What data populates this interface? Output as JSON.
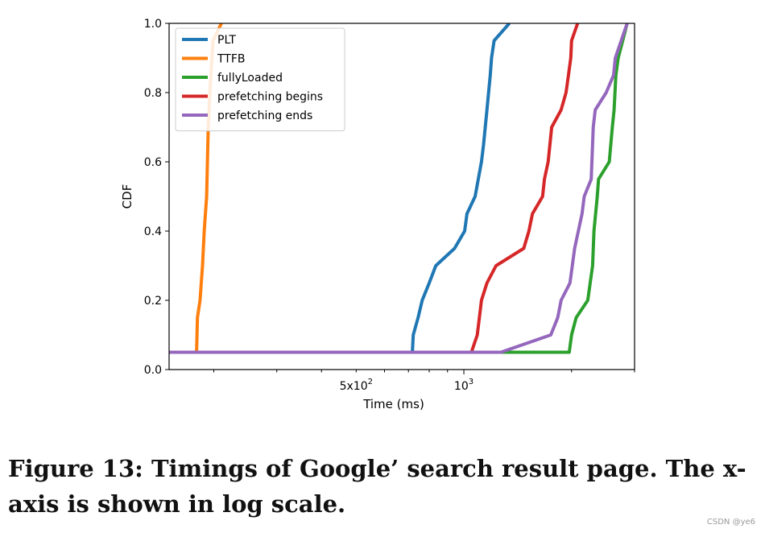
{
  "chart_data": {
    "type": "line",
    "xlabel": "Time (ms)",
    "ylabel": "CDF",
    "xscale": "log",
    "xlim": [
      150,
      3000
    ],
    "ylim": [
      0.0,
      1.0
    ],
    "x_tick_labels": [
      {
        "value": 500,
        "base": "5x10",
        "exp": "2"
      },
      {
        "value": 1000,
        "base": "10",
        "exp": "3"
      }
    ],
    "y_ticks": [
      0.0,
      0.2,
      0.4,
      0.6,
      0.8,
      1.0
    ],
    "y_tick_labels": [
      "0.0",
      "0.2",
      "0.4",
      "0.6",
      "0.8",
      "1.0"
    ],
    "legend_position": "upper-left",
    "grid": false,
    "series": [
      {
        "name": "PLT",
        "color": "#1f77b4",
        "points": [
          [
            150,
            0.05
          ],
          [
            718,
            0.05
          ],
          [
            722,
            0.1
          ],
          [
            745,
            0.15
          ],
          [
            765,
            0.2
          ],
          [
            800,
            0.25
          ],
          [
            835,
            0.3
          ],
          [
            942,
            0.35
          ],
          [
            1005,
            0.4
          ],
          [
            1020,
            0.45
          ],
          [
            1075,
            0.5
          ],
          [
            1120,
            0.6
          ],
          [
            1135,
            0.65
          ],
          [
            1160,
            0.75
          ],
          [
            1185,
            0.85
          ],
          [
            1195,
            0.9
          ],
          [
            1215,
            0.95
          ],
          [
            1340,
            1.0
          ]
        ]
      },
      {
        "name": "TTFB",
        "color": "#ff7f0e",
        "points": [
          [
            150,
            0.05
          ],
          [
            179,
            0.05
          ],
          [
            180,
            0.15
          ],
          [
            183,
            0.2
          ],
          [
            186,
            0.3
          ],
          [
            188,
            0.4
          ],
          [
            191,
            0.5
          ],
          [
            193,
            0.7
          ],
          [
            195,
            0.8
          ],
          [
            199,
            0.95
          ],
          [
            210,
            1.0
          ]
        ]
      },
      {
        "name": "fullyLoaded",
        "color": "#2ca02c",
        "points": [
          [
            150,
            0.05
          ],
          [
            1970,
            0.05
          ],
          [
            2000,
            0.1
          ],
          [
            2060,
            0.15
          ],
          [
            2220,
            0.2
          ],
          [
            2290,
            0.3
          ],
          [
            2310,
            0.4
          ],
          [
            2360,
            0.5
          ],
          [
            2380,
            0.55
          ],
          [
            2550,
            0.6
          ],
          [
            2600,
            0.7
          ],
          [
            2630,
            0.75
          ],
          [
            2660,
            0.85
          ],
          [
            2700,
            0.9
          ],
          [
            2780,
            0.95
          ],
          [
            2860,
            1.0
          ]
        ]
      },
      {
        "name": "prefetching begins",
        "color": "#d62728",
        "points": [
          [
            150,
            0.05
          ],
          [
            1050,
            0.05
          ],
          [
            1090,
            0.1
          ],
          [
            1120,
            0.2
          ],
          [
            1160,
            0.25
          ],
          [
            1230,
            0.3
          ],
          [
            1470,
            0.35
          ],
          [
            1520,
            0.4
          ],
          [
            1555,
            0.45
          ],
          [
            1660,
            0.5
          ],
          [
            1680,
            0.55
          ],
          [
            1720,
            0.6
          ],
          [
            1760,
            0.7
          ],
          [
            1870,
            0.75
          ],
          [
            1930,
            0.8
          ],
          [
            1960,
            0.85
          ],
          [
            1990,
            0.9
          ],
          [
            2000,
            0.95
          ],
          [
            2080,
            1.0
          ]
        ]
      },
      {
        "name": "prefetching ends",
        "color": "#9467bd",
        "points": [
          [
            150,
            0.05
          ],
          [
            1270,
            0.05
          ],
          [
            1750,
            0.1
          ],
          [
            1830,
            0.15
          ],
          [
            1870,
            0.2
          ],
          [
            1980,
            0.25
          ],
          [
            2010,
            0.3
          ],
          [
            2040,
            0.35
          ],
          [
            2140,
            0.45
          ],
          [
            2170,
            0.5
          ],
          [
            2270,
            0.55
          ],
          [
            2300,
            0.7
          ],
          [
            2330,
            0.75
          ],
          [
            2500,
            0.8
          ],
          [
            2620,
            0.85
          ],
          [
            2650,
            0.9
          ],
          [
            2860,
            1.0
          ]
        ]
      }
    ]
  },
  "caption": "Figure 13: Timings of Google’ search result page. The x-axis is shown in log scale.",
  "watermark": "CSDN @ye6"
}
